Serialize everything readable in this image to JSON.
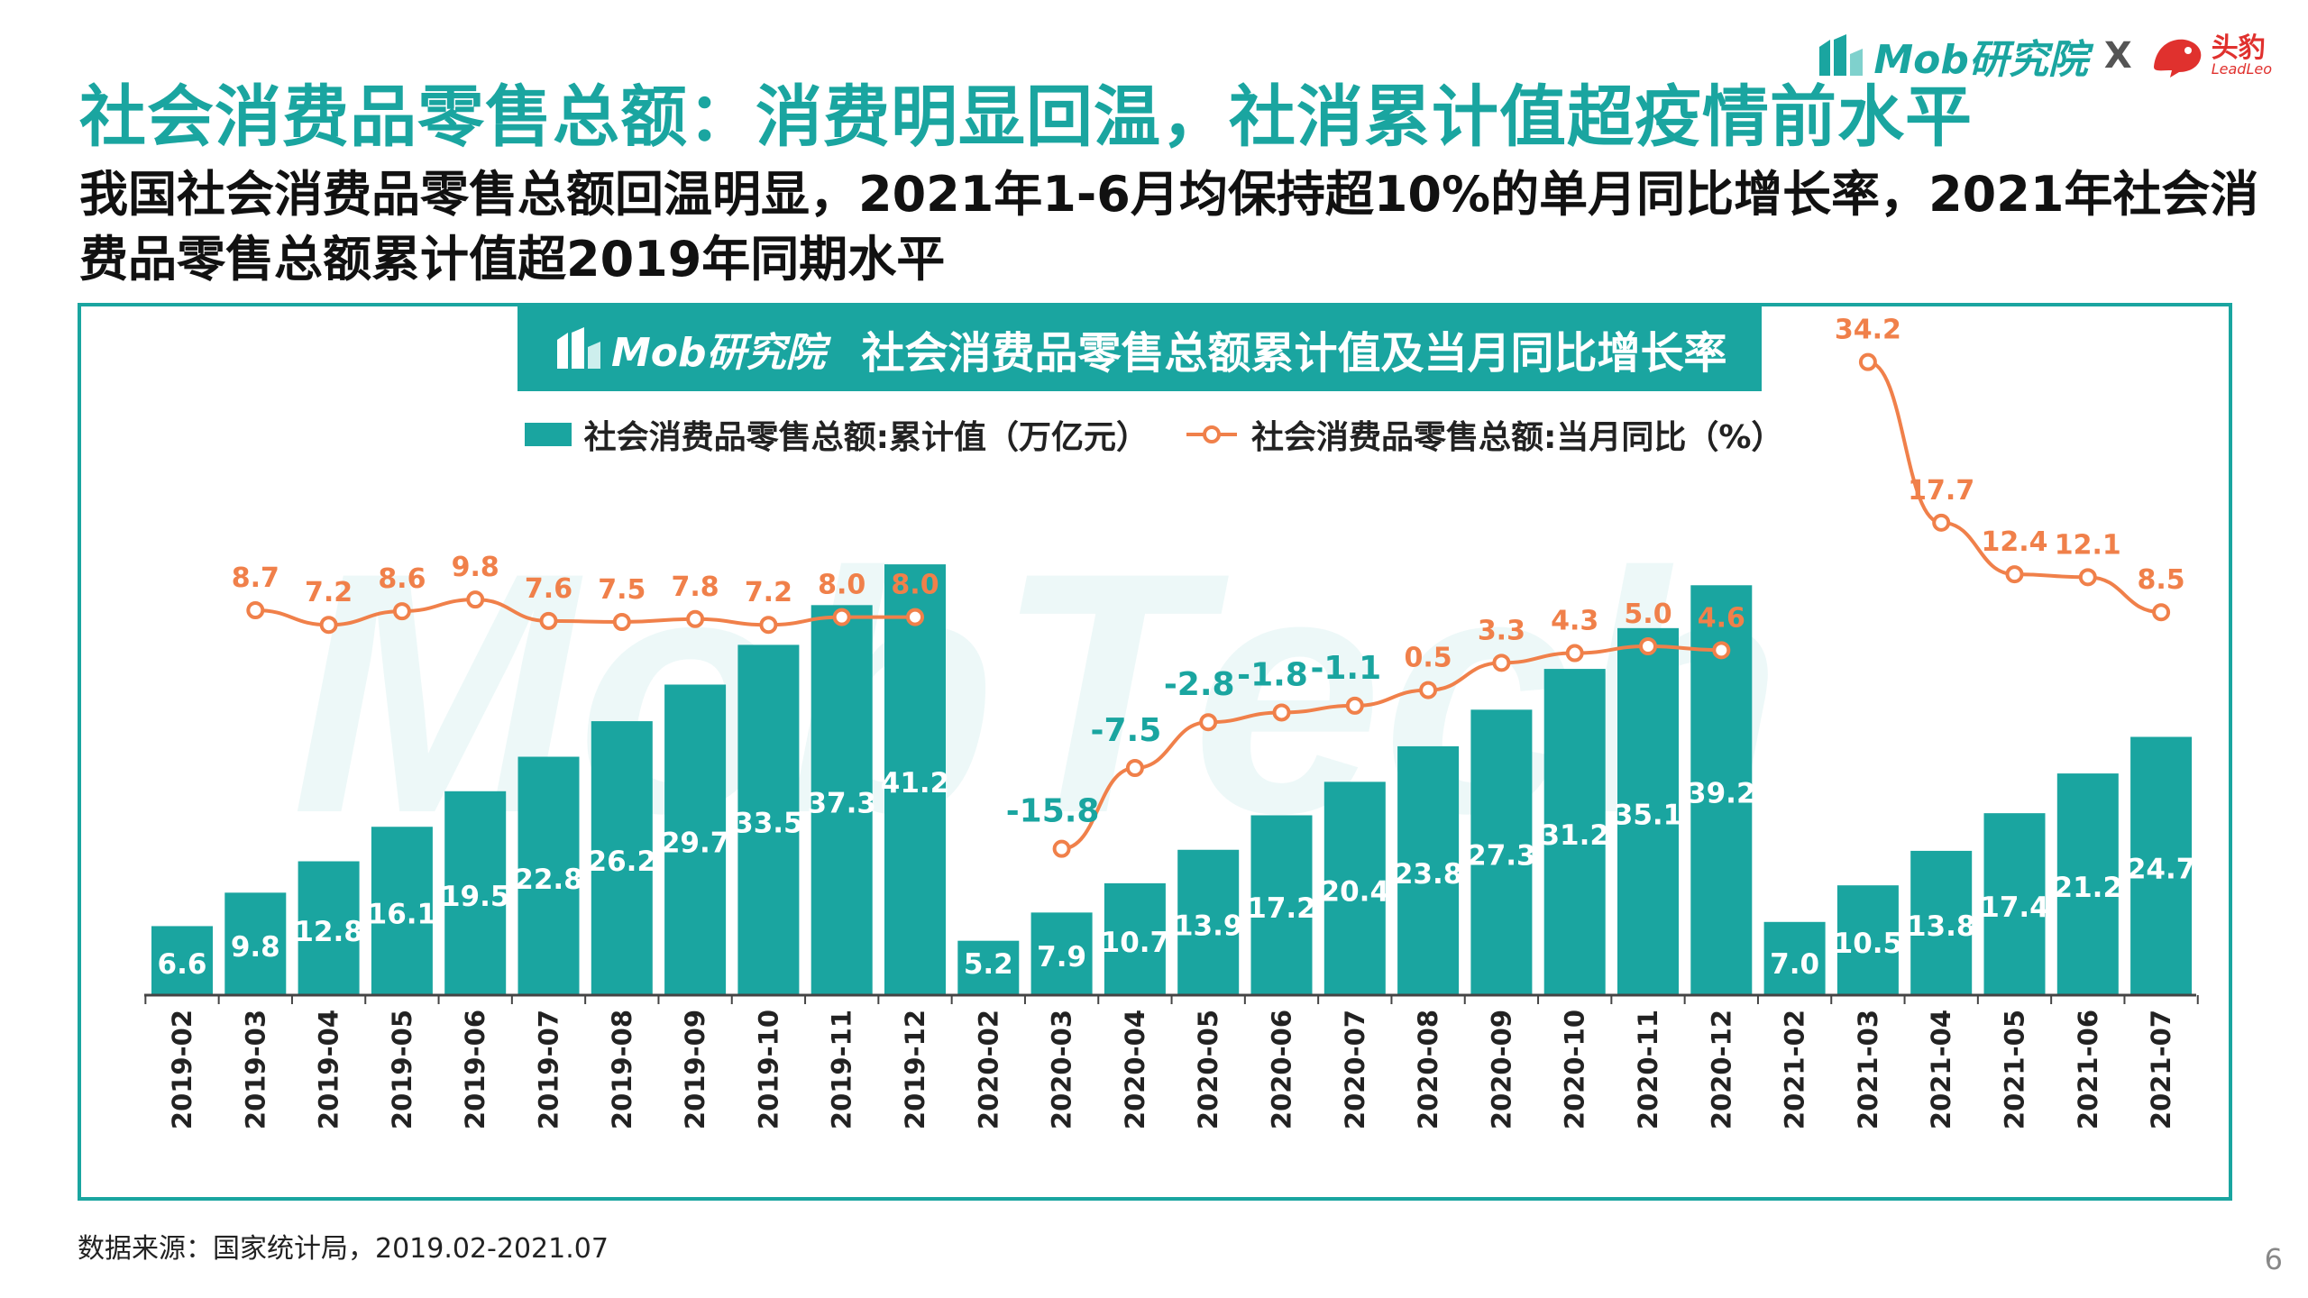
{
  "title": "社会消费品零售总额：消费明显回温，社消累计值超疫情前水平",
  "subtitle": "我国社会消费品零售总额回温明显，2021年1-6月均保持超10%的单月同比增长率，2021年社会消费品零售总额累计值超2019年同期水平",
  "brand": {
    "mob": "Mob研究院",
    "separator": "X",
    "partner_cn": "头豹",
    "partner_en": "LeadLeo"
  },
  "chart_header": {
    "logo": "Mob研究院",
    "title": "社会消费品零售总额累计值及当月同比增长率"
  },
  "watermark": "MobTech",
  "source": "数据来源：国家统计局，2019.02-2021.07",
  "page_number": "6",
  "colors": {
    "bar": "#1aa5a0",
    "line": "#f0804a",
    "line_label": "#f0804a",
    "neg_label": "#1aa5a0",
    "accent": "#1aa5a0"
  },
  "chart_data": {
    "type": "bar+line",
    "title": "社会消费品零售总额累计值及当月同比增长率",
    "categories": [
      "2019-02",
      "2019-03",
      "2019-04",
      "2019-05",
      "2019-06",
      "2019-07",
      "2019-08",
      "2019-09",
      "2019-10",
      "2019-11",
      "2019-12",
      "2020-02",
      "2020-03",
      "2020-04",
      "2020-05",
      "2020-06",
      "2020-07",
      "2020-08",
      "2020-09",
      "2020-10",
      "2020-11",
      "2020-12",
      "2021-02",
      "2021-03",
      "2021-04",
      "2021-05",
      "2021-06",
      "2021-07"
    ],
    "series": [
      {
        "name": "社会消费品零售总额:累计值（万亿元）",
        "type": "bar",
        "values": [
          6.6,
          9.8,
          12.8,
          16.1,
          19.5,
          22.8,
          26.2,
          29.7,
          33.5,
          37.3,
          41.2,
          5.2,
          7.9,
          10.7,
          13.9,
          17.2,
          20.4,
          23.8,
          27.3,
          31.2,
          35.1,
          39.2,
          7.0,
          10.5,
          13.8,
          17.4,
          21.2,
          24.7
        ],
        "labels": [
          "6.6",
          "9.8",
          "12.8",
          "16.1",
          "19.5",
          "22.8",
          "26.2",
          "29.7",
          "33.5",
          "37.3",
          "41.2",
          "5.2",
          "7.9",
          "10.7",
          "13.9",
          "17.2",
          "20.4",
          "23.8",
          "27.3",
          "31.2",
          "35.1",
          "39.2",
          "7.0",
          "10.5",
          "13.8",
          "17.4",
          "21.2",
          "24.7"
        ]
      },
      {
        "name": "社会消费品零售总额:当月同比（%）",
        "type": "line",
        "values": [
          null,
          8.7,
          7.2,
          8.6,
          9.8,
          7.6,
          7.5,
          7.8,
          7.2,
          8.0,
          8.0,
          null,
          -15.8,
          -7.5,
          -2.8,
          -1.8,
          -1.1,
          0.5,
          3.3,
          4.3,
          5.0,
          4.6,
          null,
          34.2,
          17.7,
          12.4,
          12.1,
          8.5
        ],
        "labels": [
          null,
          "8.7",
          "7.2",
          "8.6",
          "9.8",
          "7.6",
          "7.5",
          "7.8",
          "7.2",
          "8.0",
          "8.0",
          null,
          "-15.8",
          "-7.5",
          "-2.8",
          "-1.8",
          "-1.1",
          "0.5",
          "3.3",
          "4.3",
          "5.0",
          "4.6",
          null,
          "34.2",
          "17.7",
          "12.4",
          "12.1",
          "8.5"
        ]
      }
    ],
    "legend_position": "top-center",
    "grid": false
  }
}
